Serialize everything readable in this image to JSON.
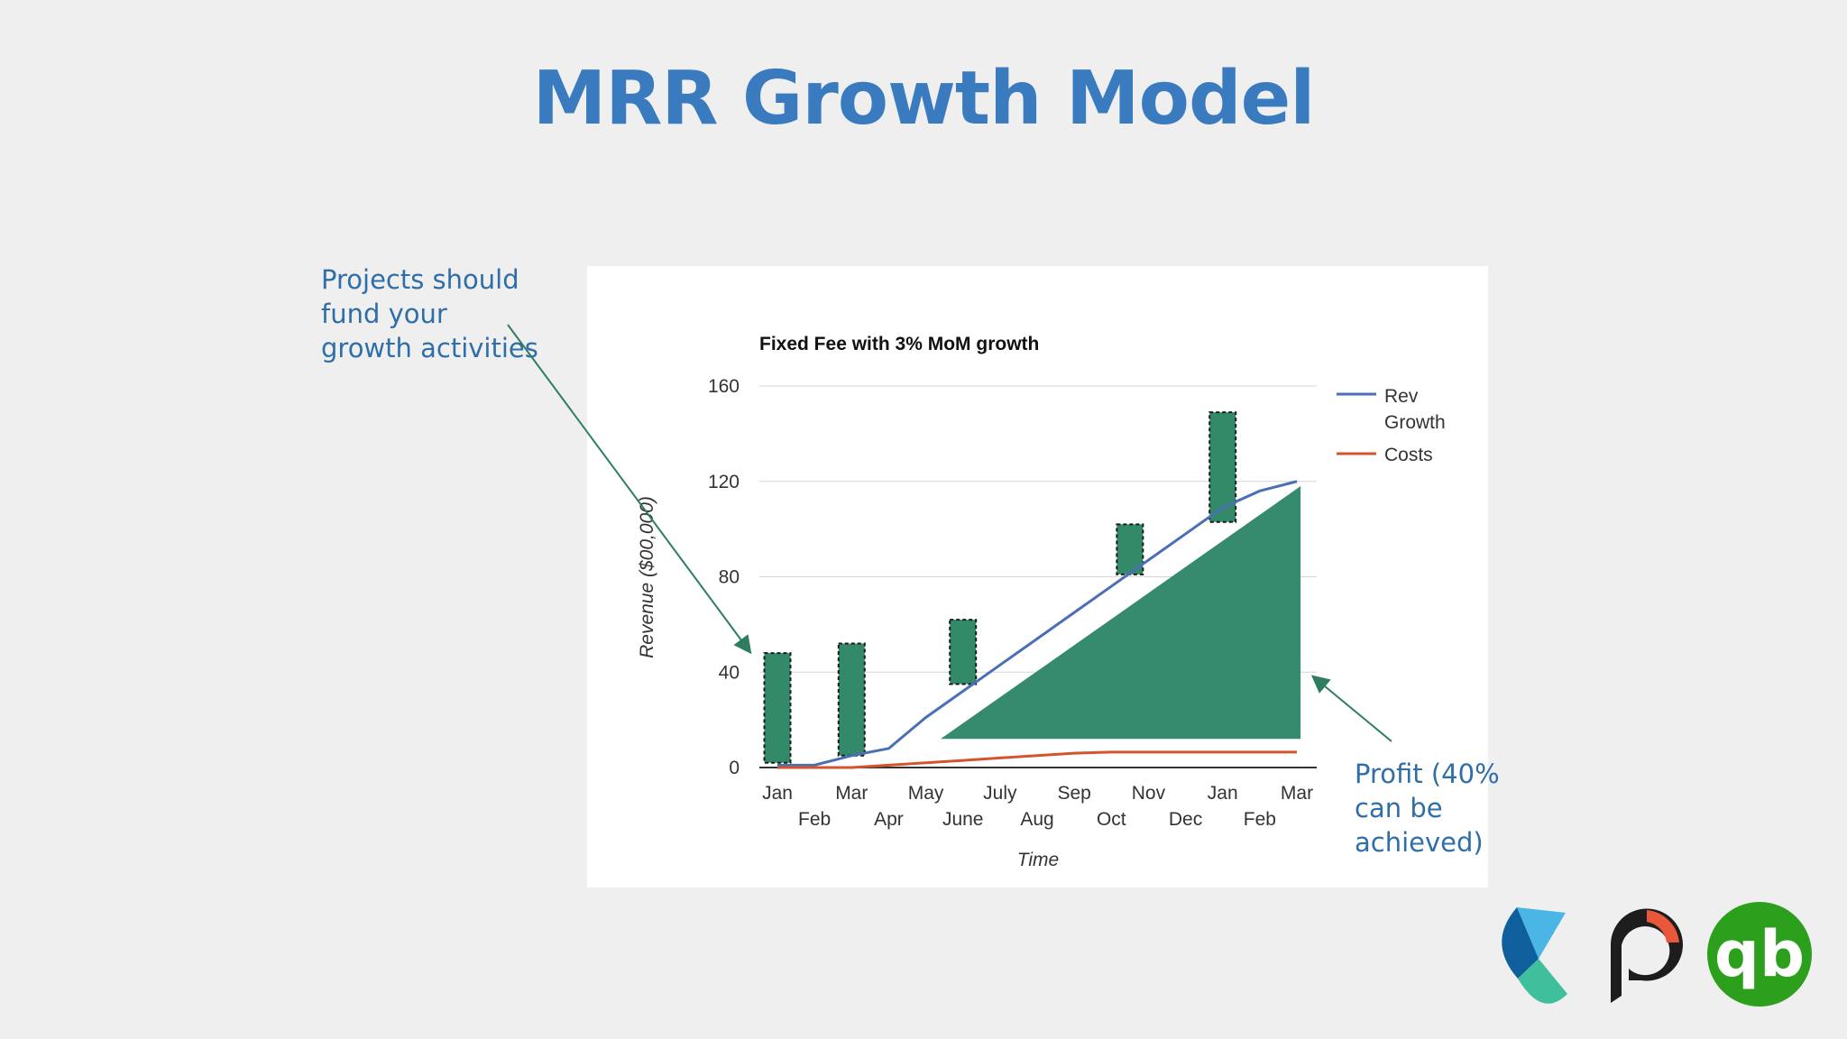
{
  "slide": {
    "title": "MRR Growth Model",
    "note_left": [
      "Projects should",
      "fund your",
      "growth activities"
    ],
    "note_right": [
      "Profit (40%",
      "can be",
      "achieved)"
    ]
  },
  "logos": [
    {
      "name": "blue-sail-logo"
    },
    {
      "name": "p-circle-logo"
    },
    {
      "name": "quickbooks-logo",
      "text": "qb"
    }
  ],
  "colors": {
    "title": "#3a7bbf",
    "note": "#2f6ea8",
    "rev_line": "#4a6fb5",
    "cost_line": "#d6542b",
    "project_bar": "#338a68",
    "profit_area": "#368a6d"
  },
  "chart_data": {
    "type": "line",
    "title": "Fixed Fee with 3% MoM growth",
    "xlabel": "Time",
    "ylabel": "Revenue ($00,000)",
    "ylim": [
      0,
      160
    ],
    "yticks": [
      0,
      40,
      80,
      120,
      160
    ],
    "grid": true,
    "legend_position": "right",
    "categories": [
      "Jan",
      "Feb",
      "Mar",
      "Apr",
      "May",
      "June",
      "July",
      "Aug",
      "Sep",
      "Oct",
      "Nov",
      "Dec",
      "Jan",
      "Feb",
      "Mar"
    ],
    "series": [
      {
        "name": "Rev Growth",
        "color": "#4a6fb5",
        "values": [
          1,
          1,
          5,
          8,
          21,
          32,
          43,
          54,
          65,
          76,
          87,
          98,
          109,
          116,
          120
        ]
      },
      {
        "name": "Costs",
        "color": "#d6542b",
        "values": [
          0,
          0,
          0,
          1,
          2,
          3,
          4,
          5,
          6,
          6.5,
          6.5,
          6.5,
          6.5,
          6.5,
          6.5
        ]
      }
    ],
    "project_bars": [
      {
        "x": 0,
        "low": 2,
        "high": 48
      },
      {
        "x": 2,
        "low": 5,
        "high": 52
      },
      {
        "x": 5,
        "low": 35,
        "high": 62
      },
      {
        "x": 9.5,
        "low": 81,
        "high": 102
      },
      {
        "x": 12,
        "low": 103,
        "high": 149
      }
    ],
    "profit_area": {
      "x_start": 4.4,
      "x_end": 14.1,
      "low": 12,
      "high_start": 12,
      "high_end": 118
    }
  }
}
